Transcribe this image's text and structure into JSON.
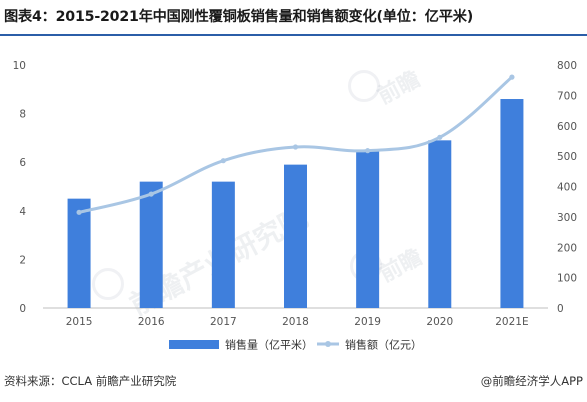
{
  "title": "图表4：2015-2021年中国刚性覆铜板销售量和销售额变化(单位：亿平米)",
  "source": "资料来源：CCLA 前瞻产业研究院",
  "credit": "@前瞻经济学人APP",
  "watermark": {
    "text_large": "前瞻产业研究院",
    "text_small": "前瞻",
    "brand": "前瞻"
  },
  "colors": {
    "bar": "#3f7fdc",
    "line": "#a9c6e4",
    "axis": "#bfbfbf",
    "title_rule": "#2b5ea8"
  },
  "chart_data": {
    "type": "bar",
    "title": "",
    "xlabel": "",
    "ylabel": "",
    "categories": [
      "2015",
      "2016",
      "2017",
      "2018",
      "2019",
      "2020",
      "2021E"
    ],
    "series": [
      {
        "name": "销售量（亿平米）",
        "type": "bar",
        "axis": "left",
        "values": [
          4.5,
          5.2,
          5.2,
          5.9,
          6.5,
          6.9,
          8.6
        ]
      },
      {
        "name": "销售额（亿元）",
        "type": "line",
        "axis": "right",
        "values": [
          315,
          375,
          485,
          530,
          518,
          562,
          760
        ]
      }
    ],
    "y_left": {
      "min": 0,
      "max": 10,
      "ticks": [
        0,
        2,
        4,
        6,
        8,
        10
      ]
    },
    "y_right": {
      "min": 0,
      "max": 800,
      "ticks": [
        0,
        100,
        200,
        300,
        400,
        500,
        600,
        700,
        800
      ]
    },
    "legend": "bottom-center",
    "grid": false
  }
}
